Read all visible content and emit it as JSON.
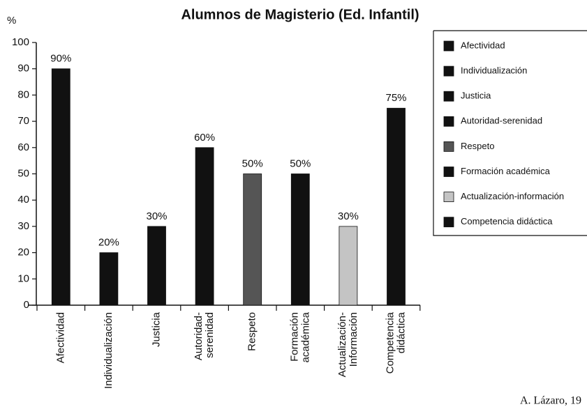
{
  "chart_data": {
    "type": "bar",
    "title": "Alumnos de Magisterio (Ed. Infantil)",
    "y_label": "%",
    "categories": [
      "Afectividad",
      "Individualización",
      "Justicia",
      "Autoridad-\nserenidad",
      "Respeto",
      "Formación\nacadémica",
      "Actualización-\nInformación",
      "Competencia\ndidáctica"
    ],
    "values": [
      90,
      20,
      30,
      60,
      50,
      50,
      30,
      75
    ],
    "value_labels": [
      "90%",
      "20%",
      "30%",
      "60%",
      "50%",
      "50%",
      "30%",
      "75%"
    ],
    "colors": [
      "#111111",
      "#111111",
      "#111111",
      "#111111",
      "#555555",
      "#111111",
      "#c4c4c4",
      "#111111"
    ],
    "legend": [
      "Afectividad",
      "Individualización",
      "Justicia",
      "Autoridad-serenidad",
      "Respeto",
      "Formación académica",
      "Actualización-información",
      "Competencia didáctica"
    ],
    "ylim": [
      0,
      100
    ],
    "yticks": [
      0,
      10,
      20,
      30,
      40,
      50,
      60,
      70,
      80,
      90,
      100
    ],
    "legend_position": "right",
    "source": "A. Lázaro, 19"
  }
}
